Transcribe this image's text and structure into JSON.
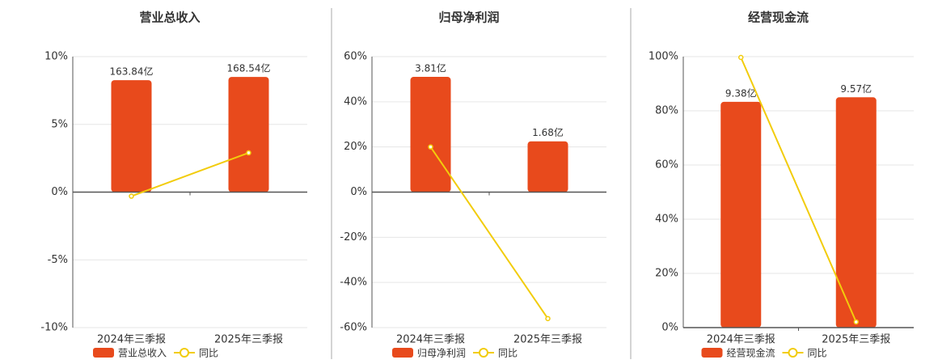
{
  "chart_data": [
    {
      "type": "combo",
      "title": "营业总收入",
      "categories": [
        "2024年三季报",
        "2025年三季报"
      ],
      "ylim": [
        -10,
        10
      ],
      "yticks": [
        {
          "value": -10,
          "label": "-10%"
        },
        {
          "value": -5,
          "label": "-5%"
        },
        {
          "value": 0,
          "label": "0%"
        },
        {
          "value": 5,
          "label": "5%"
        },
        {
          "value": 10,
          "label": "10%"
        }
      ],
      "y2lim": [
        -198.3,
        198.3
      ],
      "grid": true,
      "series": [
        {
          "name": "营业总收入",
          "type": "bar",
          "axis": "y2",
          "color": "#e84a1c",
          "values": [
            163.84,
            168.54
          ],
          "value_labels": [
            "163.84亿",
            "168.54亿"
          ]
        },
        {
          "name": "同比",
          "type": "line",
          "color": "#f2cc0c",
          "values": [
            -0.3,
            2.9
          ]
        }
      ]
    },
    {
      "type": "combo",
      "title": "归母净利润",
      "categories": [
        "2024年三季报",
        "2025年三季报"
      ],
      "ylim": [
        -60,
        60
      ],
      "yticks": [
        {
          "value": -60,
          "label": "-60%"
        },
        {
          "value": -40,
          "label": "-40%"
        },
        {
          "value": -20,
          "label": "-20%"
        },
        {
          "value": 0,
          "label": "0%"
        },
        {
          "value": 20,
          "label": "20%"
        },
        {
          "value": 40,
          "label": "40%"
        },
        {
          "value": 60,
          "label": "60%"
        }
      ],
      "y2lim": [
        -4.48,
        4.48
      ],
      "grid": true,
      "series": [
        {
          "name": "归母净利润",
          "type": "bar",
          "axis": "y2",
          "color": "#e84a1c",
          "values": [
            3.81,
            1.68
          ],
          "value_labels": [
            "3.81亿",
            "1.68亿"
          ]
        },
        {
          "name": "同比",
          "type": "line",
          "color": "#f2cc0c",
          "values": [
            20,
            -56
          ]
        }
      ]
    },
    {
      "type": "combo",
      "title": "经营现金流",
      "categories": [
        "2024年三季报",
        "2025年三季报"
      ],
      "ylim": [
        0,
        100
      ],
      "yticks": [
        {
          "value": 0,
          "label": "0%"
        },
        {
          "value": 20,
          "label": "20%"
        },
        {
          "value": 40,
          "label": "40%"
        },
        {
          "value": 60,
          "label": "60%"
        },
        {
          "value": 80,
          "label": "80%"
        },
        {
          "value": 100,
          "label": "100%"
        }
      ],
      "y2lim": [
        0,
        11.26
      ],
      "grid": true,
      "series": [
        {
          "name": "经营现金流",
          "type": "bar",
          "axis": "y2",
          "color": "#e84a1c",
          "values": [
            9.38,
            9.57
          ],
          "value_labels": [
            "9.38亿",
            "9.57亿"
          ]
        },
        {
          "name": "同比",
          "type": "line",
          "color": "#f2cc0c",
          "values": [
            99.7,
            2.1
          ]
        }
      ]
    }
  ]
}
